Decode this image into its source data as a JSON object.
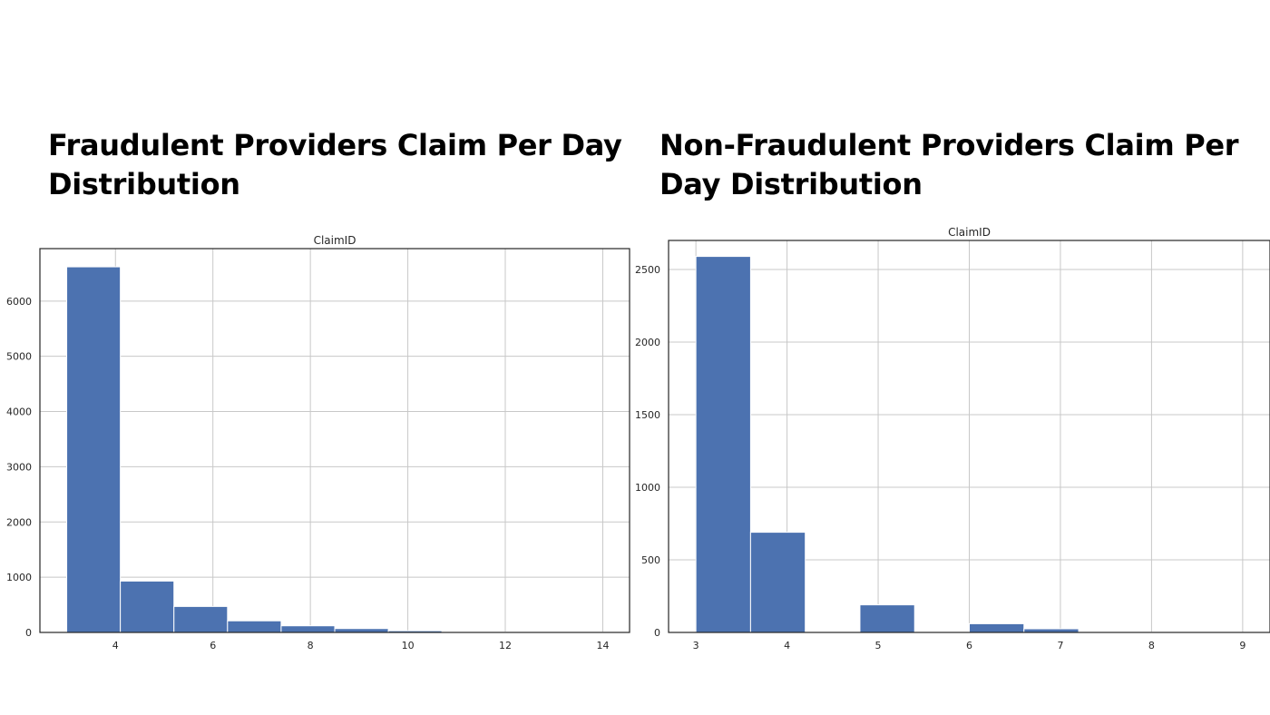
{
  "headings": {
    "left": "Fraudulent Providers Claim Per Day Distribution",
    "right": "Non-Fraudulent Providers Claim Per Day Distribution"
  },
  "colors": {
    "bar": "#4c72b0",
    "grid": "#c8c8c8",
    "frame": "#262626",
    "text": "#262626"
  },
  "chart_data": [
    {
      "type": "bar",
      "title": "ClaimID",
      "xlabel": "",
      "ylabel": "",
      "grid": true,
      "xlim": [
        2.45,
        14.55
      ],
      "ylim": [
        0,
        6950
      ],
      "xticks": [
        4,
        6,
        8,
        10,
        12,
        14
      ],
      "yticks": [
        0,
        1000,
        2000,
        3000,
        4000,
        5000,
        6000
      ],
      "bins": [
        {
          "x0": 3.0,
          "x1": 4.1,
          "value": 6620
        },
        {
          "x0": 4.1,
          "x1": 5.2,
          "value": 930
        },
        {
          "x0": 5.2,
          "x1": 6.3,
          "value": 470
        },
        {
          "x0": 6.3,
          "x1": 7.4,
          "value": 210
        },
        {
          "x0": 7.4,
          "x1": 8.5,
          "value": 120
        },
        {
          "x0": 8.5,
          "x1": 9.6,
          "value": 70
        },
        {
          "x0": 9.6,
          "x1": 10.7,
          "value": 30
        },
        {
          "x0": 10.7,
          "x1": 11.8,
          "value": 12
        },
        {
          "x0": 11.8,
          "x1": 12.9,
          "value": 8
        },
        {
          "x0": 12.9,
          "x1": 14.0,
          "value": 5
        }
      ]
    },
    {
      "type": "bar",
      "title": "ClaimID",
      "xlabel": "",
      "ylabel": "",
      "grid": true,
      "xlim": [
        2.7,
        9.3
      ],
      "ylim": [
        0,
        2700
      ],
      "xticks": [
        3,
        4,
        5,
        6,
        7,
        8,
        9
      ],
      "yticks": [
        0,
        500,
        1000,
        1500,
        2000,
        2500
      ],
      "bins": [
        {
          "x0": 3.0,
          "x1": 3.6,
          "value": 2590
        },
        {
          "x0": 3.6,
          "x1": 4.2,
          "value": 690
        },
        {
          "x0": 4.2,
          "x1": 4.8,
          "value": 0
        },
        {
          "x0": 4.8,
          "x1": 5.4,
          "value": 190
        },
        {
          "x0": 5.4,
          "x1": 6.0,
          "value": 0
        },
        {
          "x0": 6.0,
          "x1": 6.6,
          "value": 60
        },
        {
          "x0": 6.6,
          "x1": 7.2,
          "value": 25
        },
        {
          "x0": 7.2,
          "x1": 7.8,
          "value": 4
        },
        {
          "x0": 7.8,
          "x1": 8.4,
          "value": 2
        },
        {
          "x0": 8.4,
          "x1": 9.0,
          "value": 1
        }
      ]
    }
  ]
}
